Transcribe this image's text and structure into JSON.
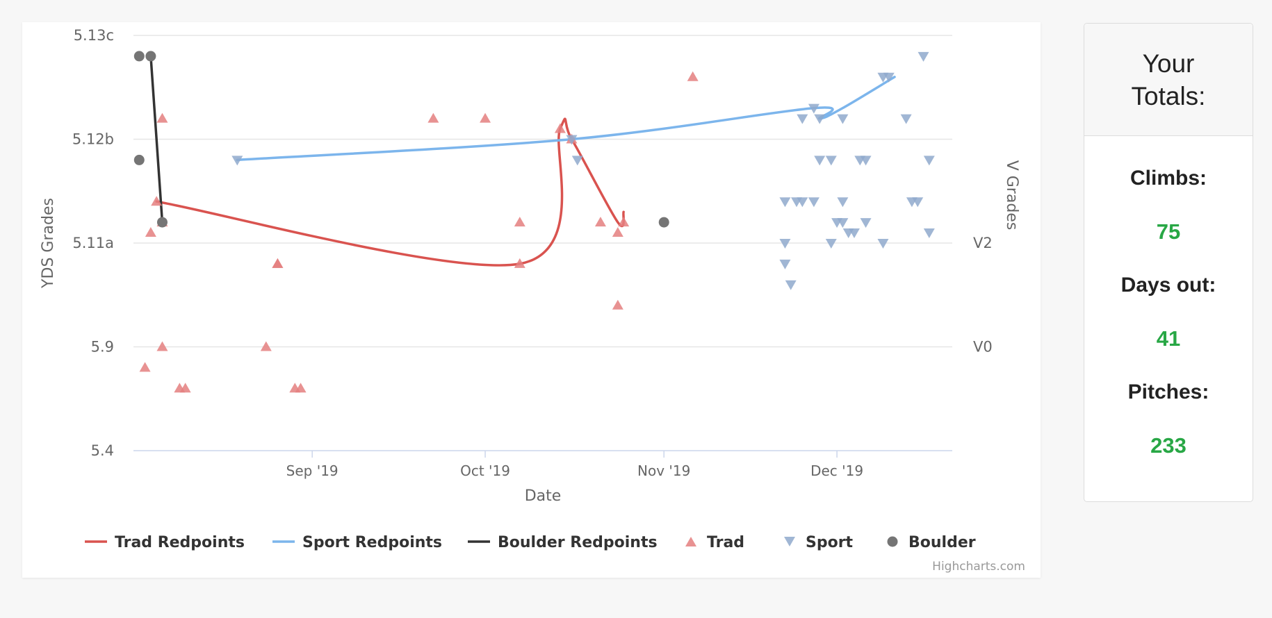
{
  "colors": {
    "trad": "#d9534f",
    "sport": "#7cb5ec",
    "boulder": "#333333",
    "trad_point": "#e47f7f",
    "sport_point": "#8fa9cc",
    "boulder_point": "#757575",
    "value_green": "#28a745"
  },
  "credits": "Highcharts.com",
  "totals": {
    "title_line1": "Your",
    "title_line2": "Totals:",
    "stats": [
      {
        "label": "Climbs:",
        "value": "75"
      },
      {
        "label": "Days out:",
        "value": "41"
      },
      {
        "label": "Pitches:",
        "value": "233"
      }
    ]
  },
  "chart_data": {
    "type": "scatter",
    "xlabel": "Date",
    "ylabel": "YDS Grades",
    "y2label": "V Grades",
    "xlim": [
      "2019-08-01",
      "2019-12-21"
    ],
    "x_ticks": [
      {
        "date": "2019-09-01",
        "label": "Sep '19"
      },
      {
        "date": "2019-10-01",
        "label": "Oct '19"
      },
      {
        "date": "2019-11-01",
        "label": "Nov '19"
      },
      {
        "date": "2019-12-01",
        "label": "Dec '19"
      }
    ],
    "y_ticks": [
      "5.4",
      "5.9",
      "5.11a",
      "5.12b",
      "5.13c"
    ],
    "y2_ticks": [
      {
        "label": "V0",
        "at": "5.9"
      },
      {
        "label": "V2",
        "at": "5.11a"
      }
    ],
    "grid": true,
    "legend_position": "bottom",
    "legend": [
      {
        "label": "Trad Redpoints",
        "kind": "line",
        "series": "trad"
      },
      {
        "label": "Sport Redpoints",
        "kind": "line",
        "series": "sport"
      },
      {
        "label": "Boulder Redpoints",
        "kind": "line",
        "series": "boulder"
      },
      {
        "label": "Trad",
        "kind": "triangle-up",
        "series": "trad"
      },
      {
        "label": "Sport",
        "kind": "triangle-down",
        "series": "sport"
      },
      {
        "label": "Boulder",
        "kind": "circle",
        "series": "boulder"
      }
    ],
    "lines": [
      {
        "name": "Trad Redpoints",
        "series": "trad",
        "points": [
          [
            "2019-08-05",
            "5.11c"
          ],
          [
            "2019-10-07",
            "5.10d"
          ],
          [
            "2019-10-14",
            "5.12b+"
          ],
          [
            "2019-10-16",
            "5.12b"
          ],
          [
            "2019-10-24",
            "5.11b"
          ],
          [
            "2019-10-25",
            "5.11c-"
          ]
        ]
      },
      {
        "name": "Sport Redpoints",
        "series": "sport",
        "points": [
          [
            "2019-08-19",
            "5.12a"
          ],
          [
            "2019-10-16",
            "5.12b"
          ],
          [
            "2019-11-27",
            "5.12d-"
          ],
          [
            "2019-11-28",
            "5.12c"
          ],
          [
            "2019-12-02",
            "5.12c+"
          ],
          [
            "2019-12-11",
            "5.13a"
          ]
        ]
      },
      {
        "name": "Boulder Redpoints",
        "series": "boulder",
        "points": [
          [
            "2019-08-04",
            "5.13b"
          ],
          [
            "2019-08-06",
            "5.11b"
          ]
        ]
      }
    ],
    "points": {
      "trad": [
        [
          "2019-08-06",
          "5.12c"
        ],
        [
          "2019-08-05",
          "5.11c"
        ],
        [
          "2019-08-06",
          "5.11b"
        ],
        [
          "2019-08-04",
          "5.11a+"
        ],
        [
          "2019-08-06",
          "5.9"
        ],
        [
          "2019-08-03",
          "5.8"
        ],
        [
          "2019-08-09",
          "5.7"
        ],
        [
          "2019-08-10",
          "5.7"
        ],
        [
          "2019-08-26",
          "5.10d"
        ],
        [
          "2019-08-26",
          "5.10d"
        ],
        [
          "2019-08-24",
          "5.9"
        ],
        [
          "2019-08-29",
          "5.7"
        ],
        [
          "2019-08-30",
          "5.7"
        ],
        [
          "2019-09-22",
          "5.12c"
        ],
        [
          "2019-10-01",
          "5.12c"
        ],
        [
          "2019-10-07",
          "5.11b"
        ],
        [
          "2019-10-07",
          "5.10d"
        ],
        [
          "2019-10-14",
          "5.12b+"
        ],
        [
          "2019-10-16",
          "5.12b"
        ],
        [
          "2019-10-21",
          "5.11b"
        ],
        [
          "2019-10-24",
          "5.11a+"
        ],
        [
          "2019-10-25",
          "5.11b"
        ],
        [
          "2019-10-24",
          "5.10b"
        ],
        [
          "2019-11-06",
          "5.13a"
        ]
      ],
      "sport": [
        [
          "2019-08-19",
          "5.12a"
        ],
        [
          "2019-10-16",
          "5.12b"
        ],
        [
          "2019-10-17",
          "5.12a"
        ],
        [
          "2019-11-22",
          "5.11c"
        ],
        [
          "2019-11-24",
          "5.11c"
        ],
        [
          "2019-11-25",
          "5.11c"
        ],
        [
          "2019-11-27",
          "5.11c"
        ],
        [
          "2019-11-22",
          "5.11a"
        ],
        [
          "2019-11-22",
          "5.10d"
        ],
        [
          "2019-11-23",
          "5.10c"
        ],
        [
          "2019-11-25",
          "5.12c"
        ],
        [
          "2019-11-27",
          "5.12d-"
        ],
        [
          "2019-11-28",
          "5.12c"
        ],
        [
          "2019-11-28",
          "5.12a"
        ],
        [
          "2019-11-30",
          "5.12a"
        ],
        [
          "2019-12-02",
          "5.12c"
        ],
        [
          "2019-12-01",
          "5.11b"
        ],
        [
          "2019-12-02",
          "5.11b"
        ],
        [
          "2019-12-03",
          "5.11a+"
        ],
        [
          "2019-12-04",
          "5.11a+"
        ],
        [
          "2019-11-30",
          "5.11a"
        ],
        [
          "2019-12-02",
          "5.11c"
        ],
        [
          "2019-12-05",
          "5.12a"
        ],
        [
          "2019-12-06",
          "5.12a"
        ],
        [
          "2019-12-06",
          "5.11b"
        ],
        [
          "2019-12-09",
          "5.11a"
        ],
        [
          "2019-12-09",
          "5.13a"
        ],
        [
          "2019-12-10",
          "5.13a"
        ],
        [
          "2019-12-13",
          "5.12c"
        ],
        [
          "2019-12-14",
          "5.11c"
        ],
        [
          "2019-12-15",
          "5.11c"
        ],
        [
          "2019-12-16",
          "5.13b"
        ],
        [
          "2019-12-17",
          "5.12a"
        ],
        [
          "2019-12-17",
          "5.11a+"
        ]
      ],
      "boulder": [
        [
          "2019-08-02",
          "5.13b"
        ],
        [
          "2019-08-04",
          "5.13b"
        ],
        [
          "2019-08-02",
          "5.12a"
        ],
        [
          "2019-08-06",
          "5.11b"
        ],
        [
          "2019-11-01",
          "5.11b"
        ]
      ]
    }
  }
}
